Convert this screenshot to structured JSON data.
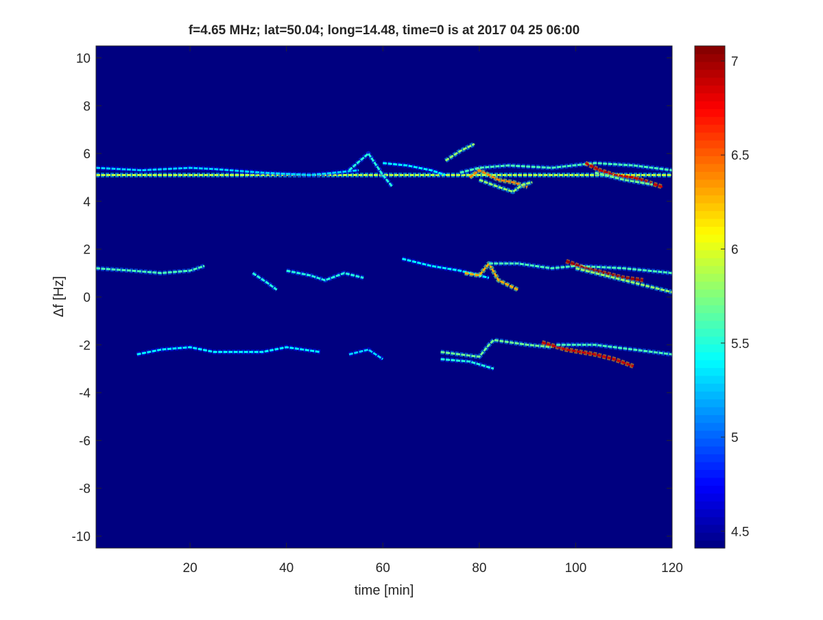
{
  "chart_data": {
    "type": "heatmap",
    "title": "f=4.65 MHz;  lat=50.04; long=14.48, time=0 is at 2017 04 25 06:00",
    "xlabel": "time [min]",
    "ylabel": "Δf [Hz]",
    "xlim": [
      0.5,
      120
    ],
    "ylim": [
      -10.5,
      10.5
    ],
    "xticks": [
      20,
      40,
      60,
      80,
      100,
      120
    ],
    "yticks": [
      -10,
      -8,
      -6,
      -4,
      -2,
      0,
      2,
      4,
      6,
      8,
      10
    ],
    "colorbar": {
      "colormap": "jet",
      "clim": [
        4.41,
        7.08
      ],
      "ticks": [
        4.5,
        5,
        5.5,
        6,
        6.5,
        7
      ],
      "location": "right"
    },
    "background_value": 4.41,
    "traces": [
      {
        "level": 5.9,
        "points": [
          [
            0.5,
            5.1
          ],
          [
            120,
            5.1
          ]
        ]
      },
      {
        "level": 5.3,
        "points": [
          [
            0.5,
            5.4
          ],
          [
            10,
            5.3
          ],
          [
            20,
            5.4
          ],
          [
            25,
            5.35
          ],
          [
            35,
            5.2
          ],
          [
            45,
            5.1
          ],
          [
            55,
            5.3
          ]
        ]
      },
      {
        "level": 5.5,
        "points": [
          [
            53,
            5.3
          ],
          [
            57,
            6.0
          ],
          [
            60,
            5.1
          ],
          [
            62,
            4.6
          ]
        ]
      },
      {
        "level": 5.4,
        "points": [
          [
            60,
            5.6
          ],
          [
            65,
            5.5
          ],
          [
            70,
            5.3
          ],
          [
            73,
            5.1
          ]
        ]
      },
      {
        "level": 5.8,
        "points": [
          [
            73,
            5.7
          ],
          [
            76,
            6.1
          ],
          [
            79,
            6.4
          ]
        ]
      },
      {
        "level": 5.6,
        "points": [
          [
            76,
            5.2
          ],
          [
            80,
            5.4
          ],
          [
            86,
            5.5
          ],
          [
            95,
            5.4
          ],
          [
            104,
            5.6
          ],
          [
            112,
            5.5
          ],
          [
            120,
            5.3
          ]
        ]
      },
      {
        "level": 6.4,
        "points": [
          [
            78,
            5.0
          ],
          [
            80,
            5.3
          ],
          [
            84,
            4.9
          ],
          [
            87,
            4.8
          ],
          [
            90,
            4.6
          ]
        ]
      },
      {
        "level": 5.8,
        "points": [
          [
            80,
            4.9
          ],
          [
            84,
            4.6
          ],
          [
            87,
            4.4
          ],
          [
            89,
            4.7
          ],
          [
            91,
            4.8
          ]
        ]
      },
      {
        "level": 6.9,
        "points": [
          [
            102,
            5.6
          ],
          [
            105,
            5.3
          ],
          [
            108,
            5.1
          ],
          [
            112,
            5.0
          ],
          [
            118,
            4.6
          ]
        ]
      },
      {
        "level": 5.7,
        "points": [
          [
            104,
            5.2
          ],
          [
            110,
            4.9
          ],
          [
            116,
            4.7
          ]
        ]
      },
      {
        "level": 5.6,
        "points": [
          [
            0.5,
            1.2
          ],
          [
            8,
            1.1
          ],
          [
            14,
            1.0
          ],
          [
            20,
            1.1
          ],
          [
            23,
            1.3
          ]
        ]
      },
      {
        "level": 5.5,
        "points": [
          [
            33,
            1.0
          ],
          [
            36,
            0.6
          ],
          [
            38,
            0.3
          ]
        ]
      },
      {
        "level": 5.5,
        "points": [
          [
            40,
            1.1
          ],
          [
            45,
            0.9
          ],
          [
            48,
            0.7
          ],
          [
            52,
            1.0
          ],
          [
            56,
            0.8
          ]
        ]
      },
      {
        "level": 5.4,
        "points": [
          [
            64,
            1.6
          ],
          [
            70,
            1.3
          ],
          [
            76,
            1.1
          ],
          [
            80,
            0.9
          ],
          [
            82,
            0.8
          ]
        ]
      },
      {
        "level": 6.3,
        "points": [
          [
            77,
            1.0
          ],
          [
            80,
            0.9
          ],
          [
            82,
            1.4
          ],
          [
            84,
            0.7
          ],
          [
            86,
            0.5
          ],
          [
            88,
            0.3
          ]
        ]
      },
      {
        "level": 5.6,
        "points": [
          [
            82,
            1.4
          ],
          [
            88,
            1.4
          ],
          [
            95,
            1.2
          ],
          [
            100,
            1.3
          ],
          [
            110,
            1.2
          ],
          [
            120,
            1.0
          ]
        ]
      },
      {
        "level": 7.0,
        "points": [
          [
            98,
            1.5
          ],
          [
            102,
            1.2
          ],
          [
            106,
            1.0
          ],
          [
            110,
            0.8
          ],
          [
            114,
            0.7
          ]
        ]
      },
      {
        "level": 5.8,
        "points": [
          [
            100,
            1.2
          ],
          [
            106,
            0.9
          ],
          [
            112,
            0.6
          ],
          [
            116,
            0.4
          ],
          [
            120,
            0.2
          ]
        ]
      },
      {
        "level": 5.4,
        "points": [
          [
            9,
            -2.4
          ],
          [
            14,
            -2.2
          ],
          [
            20,
            -2.1
          ],
          [
            25,
            -2.3
          ],
          [
            35,
            -2.3
          ],
          [
            40,
            -2.1
          ],
          [
            47,
            -2.3
          ]
        ]
      },
      {
        "level": 5.3,
        "points": [
          [
            53,
            -2.4
          ],
          [
            57,
            -2.2
          ],
          [
            60,
            -2.6
          ]
        ]
      },
      {
        "level": 5.7,
        "points": [
          [
            72,
            -2.3
          ],
          [
            76,
            -2.4
          ],
          [
            80,
            -2.5
          ],
          [
            82,
            -2.0
          ],
          [
            83,
            -1.8
          ],
          [
            90,
            -2.0
          ],
          [
            95,
            -2.1
          ]
        ]
      },
      {
        "level": 5.5,
        "points": [
          [
            72,
            -2.6
          ],
          [
            78,
            -2.7
          ],
          [
            83,
            -3.0
          ]
        ]
      },
      {
        "level": 6.9,
        "points": [
          [
            93,
            -1.9
          ],
          [
            98,
            -2.2
          ],
          [
            104,
            -2.4
          ],
          [
            108,
            -2.6
          ],
          [
            112,
            -2.9
          ]
        ]
      },
      {
        "level": 5.6,
        "points": [
          [
            96,
            -2.0
          ],
          [
            104,
            -2.0
          ],
          [
            112,
            -2.2
          ],
          [
            120,
            -2.4
          ]
        ]
      }
    ]
  }
}
